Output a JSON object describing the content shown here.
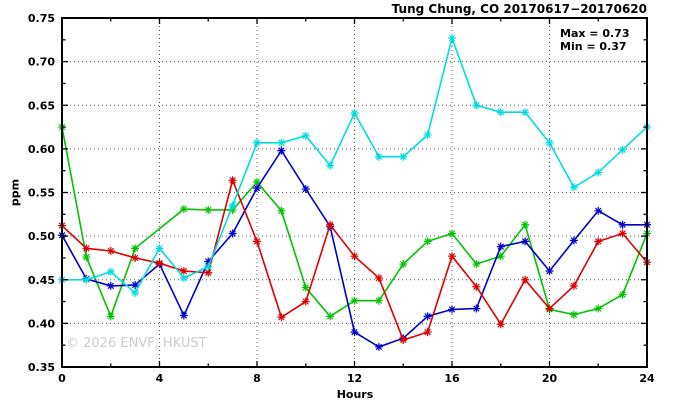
{
  "header": {
    "title": "Tung Chung, CO 20170617−20170620"
  },
  "annotations": {
    "max_label": "Max = 0.73",
    "min_label": "Min = 0.37"
  },
  "watermark": "© 2026 ENVF, HKUST",
  "colors": {
    "axis": "#000000",
    "grid": "#555555",
    "watermark": "#cccccc",
    "text": "#000000"
  },
  "chart_data": {
    "type": "line",
    "title": "Tung Chung, CO 20170617−20170620",
    "xlabel": "Hours",
    "ylabel": "ppm",
    "xlim": [
      0,
      24
    ],
    "ylim": [
      0.35,
      0.75
    ],
    "grid": true,
    "legend": "none",
    "x_major_ticks": [
      0,
      4,
      8,
      12,
      16,
      20,
      24
    ],
    "x_minor_ticks": [
      2,
      6,
      10,
      14,
      18,
      22
    ],
    "y_major_ticks": [
      0.35,
      0.4,
      0.45,
      0.5,
      0.55,
      0.6,
      0.65,
      0.7,
      0.75
    ],
    "y_minor_ticks": [
      0.375,
      0.425,
      0.475,
      0.525,
      0.575,
      0.625,
      0.675,
      0.725
    ],
    "x_grid": [
      4,
      8,
      12,
      16,
      20
    ],
    "y_grid": [
      0.4,
      0.45,
      0.5,
      0.55,
      0.6,
      0.65,
      0.7
    ],
    "x_tick_decimals": 0,
    "y_tick_decimals": 2,
    "x": [
      0,
      1,
      2,
      3,
      4,
      5,
      6,
      7,
      8,
      9,
      10,
      11,
      12,
      13,
      14,
      15,
      16,
      17,
      18,
      19,
      20,
      21,
      22,
      23,
      24
    ],
    "series": [
      {
        "name": "green",
        "color": "#00c400",
        "values": [
          0.625,
          0.476,
          0.408,
          0.486,
          null,
          0.531,
          0.53,
          0.53,
          0.562,
          0.529,
          0.441,
          0.408,
          0.426,
          0.426,
          0.468,
          0.494,
          0.503,
          0.468,
          0.477,
          0.513,
          0.416,
          0.41,
          0.417,
          0.433,
          0.503
        ]
      },
      {
        "name": "blue",
        "color": "#0000cc",
        "values": [
          0.501,
          0.451,
          0.443,
          0.444,
          0.468,
          0.409,
          0.471,
          0.503,
          0.555,
          0.598,
          0.554,
          0.511,
          0.39,
          0.373,
          0.383,
          0.408,
          0.416,
          0.417,
          0.488,
          0.494,
          0.46,
          0.495,
          0.529,
          0.513,
          0.513
        ]
      },
      {
        "name": "red",
        "color": "#dd0000",
        "values": [
          0.512,
          0.486,
          0.483,
          0.475,
          0.469,
          0.46,
          0.458,
          0.564,
          0.494,
          0.407,
          0.425,
          0.513,
          0.477,
          0.452,
          0.381,
          0.39,
          0.477,
          0.442,
          0.399,
          0.45,
          0.417,
          0.443,
          0.494,
          0.503,
          0.47
        ]
      },
      {
        "name": "cyan",
        "color": "#00dddd",
        "values": [
          0.45,
          0.45,
          0.459,
          0.435,
          0.486,
          0.452,
          0.465,
          0.535,
          0.607,
          0.607,
          0.615,
          0.581,
          0.641,
          0.591,
          0.591,
          0.616,
          0.727,
          0.65,
          0.642,
          0.642,
          0.607,
          0.556,
          0.573,
          0.599,
          0.625
        ]
      }
    ],
    "annotations": [
      "Max = 0.73",
      "Min = 0.37"
    ]
  }
}
